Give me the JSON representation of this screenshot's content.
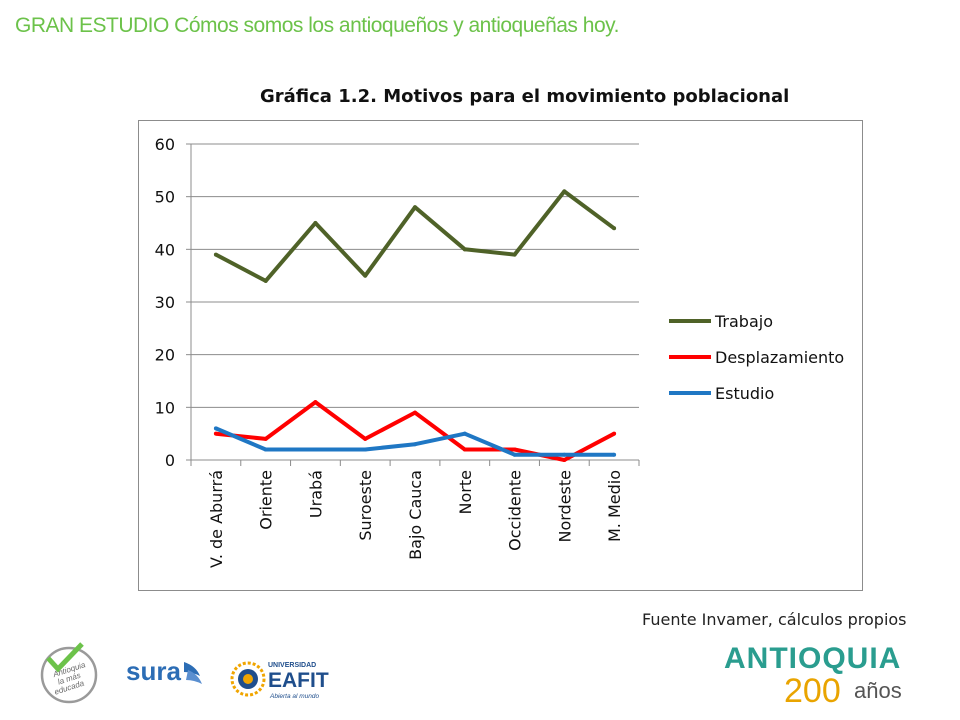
{
  "slide_title": "GRAN ESTUDIO Cómos somos los antioqueños y antioqueñas hoy.",
  "source_note": "Fuente Invamer, cálculos propios",
  "logos": {
    "antioquia_mas_educada": [
      "Antioquia",
      "la más",
      "educada"
    ],
    "sura": "sura",
    "eafit": {
      "top": "UNIVERSIDAD",
      "main": "EAFIT",
      "tagline": "Abierta al mundo"
    },
    "antioquia200": {
      "word": "ANTIOQUIA",
      "number": "200",
      "suffix": "años"
    }
  },
  "chart_data": {
    "type": "line",
    "title": "Gráfica 1.2. Motivos para el movimiento poblacional",
    "xlabel": "",
    "ylabel": "",
    "categories": [
      "V. de Aburrá",
      "Oriente",
      "Urabá",
      "Suroeste",
      "Bajo Cauca",
      "Norte",
      "Occidente",
      "Nordeste",
      "M. Medio"
    ],
    "ylim": [
      0,
      60
    ],
    "yticks": [
      0,
      10,
      20,
      30,
      40,
      50,
      60
    ],
    "grid": true,
    "legend_position": "right",
    "series": [
      {
        "name": "Trabajo",
        "color": "#4f6228",
        "values": [
          39,
          34,
          45,
          35,
          48,
          40,
          39,
          51,
          44
        ]
      },
      {
        "name": "Desplazamiento",
        "color": "#ff0000",
        "values": [
          5,
          4,
          11,
          4,
          9,
          2,
          2,
          0,
          5
        ]
      },
      {
        "name": "Estudio",
        "color": "#1f77c4",
        "values": [
          6,
          2,
          2,
          2,
          3,
          5,
          1,
          1,
          1
        ]
      }
    ]
  }
}
